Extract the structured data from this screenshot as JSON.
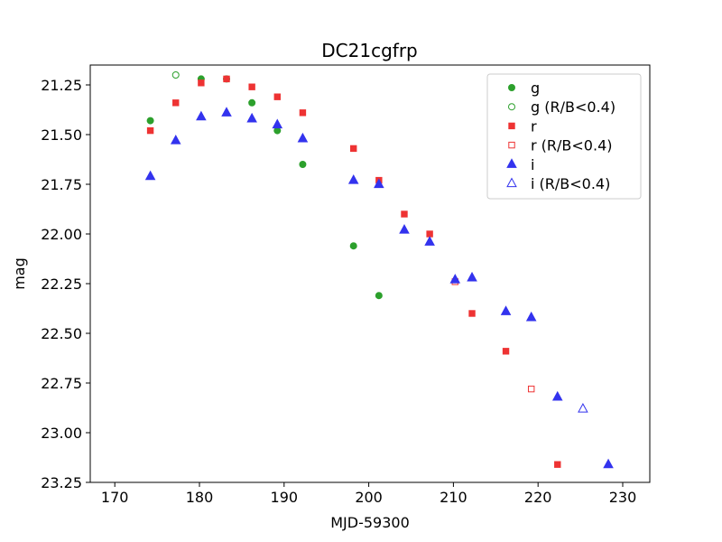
{
  "chart_data": {
    "type": "scatter",
    "title": "DC21cgfrp",
    "xlabel": "MJD-59300",
    "ylabel": "mag",
    "xlim": [
      167.1,
      233.2
    ],
    "ylim": [
      23.25,
      21.15
    ],
    "y_inverted": true,
    "xticks": [
      170,
      180,
      190,
      200,
      210,
      220,
      230
    ],
    "yticks": [
      21.25,
      21.5,
      21.75,
      22.0,
      22.25,
      22.5,
      22.75,
      23.0,
      23.25
    ],
    "ytick_labels": [
      "21.25",
      "21.50",
      "21.75",
      "22.00",
      "22.25",
      "22.50",
      "22.75",
      "23.00",
      "23.25"
    ],
    "grid": false,
    "legend_position": "top-right",
    "series": [
      {
        "name": "g",
        "color": "#2ca02c",
        "marker": "circle",
        "filled": true,
        "points": [
          [
            174.2,
            21.43
          ],
          [
            180.2,
            21.22
          ],
          [
            183.2,
            21.22
          ],
          [
            186.2,
            21.34
          ],
          [
            189.2,
            21.48
          ],
          [
            192.2,
            21.65
          ],
          [
            198.2,
            22.06
          ],
          [
            201.2,
            22.31
          ]
        ]
      },
      {
        "name": "g (R/B<0.4)",
        "color": "#2ca02c",
        "marker": "circle",
        "filled": false,
        "points": [
          [
            177.2,
            21.2
          ]
        ]
      },
      {
        "name": "r",
        "color": "#ee3333",
        "marker": "square",
        "filled": true,
        "points": [
          [
            174.2,
            21.48
          ],
          [
            177.2,
            21.34
          ],
          [
            180.2,
            21.24
          ],
          [
            183.2,
            21.22
          ],
          [
            186.2,
            21.26
          ],
          [
            189.2,
            21.31
          ],
          [
            192.2,
            21.39
          ],
          [
            198.2,
            21.57
          ],
          [
            201.2,
            21.73
          ],
          [
            204.2,
            21.9
          ],
          [
            207.2,
            22.0
          ],
          [
            212.2,
            22.4
          ],
          [
            216.2,
            22.59
          ],
          [
            222.3,
            23.16
          ]
        ]
      },
      {
        "name": "r (R/B<0.4)",
        "color": "#ee3333",
        "marker": "square",
        "filled": false,
        "points": [
          [
            210.2,
            22.24
          ],
          [
            219.2,
            22.78
          ]
        ]
      },
      {
        "name": "i",
        "color": "#3333ee",
        "marker": "triangle",
        "filled": true,
        "points": [
          [
            174.2,
            21.71
          ],
          [
            177.2,
            21.53
          ],
          [
            180.2,
            21.41
          ],
          [
            183.2,
            21.39
          ],
          [
            186.2,
            21.42
          ],
          [
            189.2,
            21.45
          ],
          [
            192.2,
            21.52
          ],
          [
            198.2,
            21.73
          ],
          [
            201.2,
            21.75
          ],
          [
            204.2,
            21.98
          ],
          [
            207.2,
            22.04
          ],
          [
            210.2,
            22.23
          ],
          [
            212.2,
            22.22
          ],
          [
            216.2,
            22.39
          ],
          [
            219.2,
            22.42
          ],
          [
            222.3,
            22.82
          ],
          [
            228.3,
            23.16
          ]
        ]
      },
      {
        "name": "i (R/B<0.4)",
        "color": "#3333ee",
        "marker": "triangle",
        "filled": false,
        "points": [
          [
            225.3,
            22.88
          ]
        ]
      }
    ]
  }
}
